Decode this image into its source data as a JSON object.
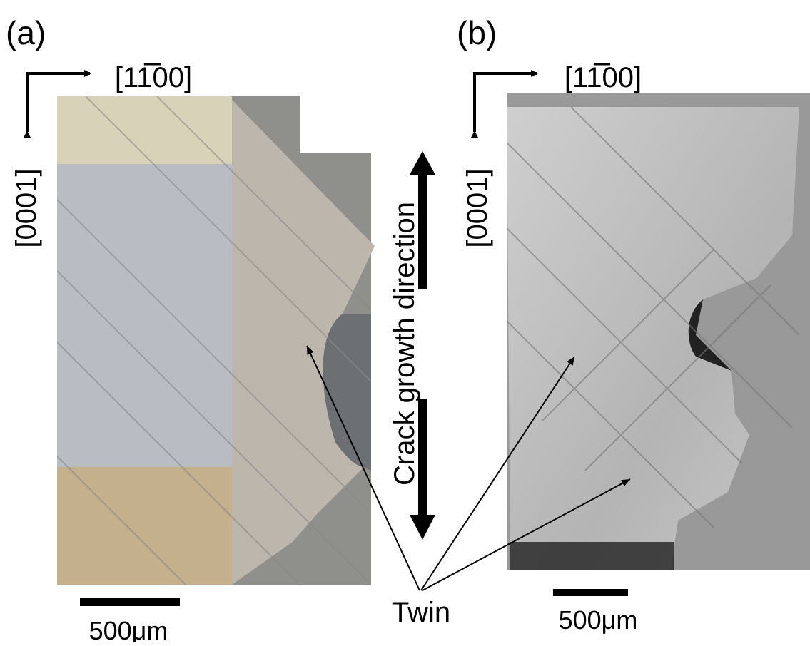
{
  "panels": [
    {
      "label": "(a)",
      "x_axis": "[11̅00]",
      "y_axis": "[0001]",
      "scale_bar": "500μm"
    },
    {
      "label": "(b)",
      "x_axis": "[11̅00]",
      "y_axis": "[0001]",
      "scale_bar": "500μm"
    }
  ],
  "annotations": {
    "crack": "Crack growth direction",
    "twin": "Twin"
  }
}
